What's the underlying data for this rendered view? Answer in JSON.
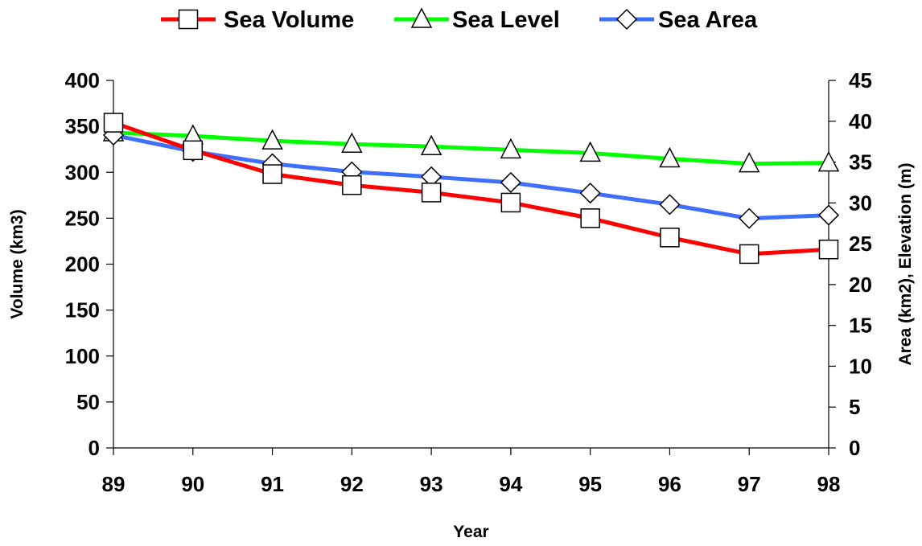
{
  "chart_data": {
    "type": "line",
    "title": "",
    "categories": [
      "89",
      "90",
      "91",
      "92",
      "93",
      "94",
      "95",
      "96",
      "97",
      "98"
    ],
    "xlabel": "Year",
    "ylabel_left": "Volume (km3)",
    "ylabel_right": "Area (km2), Elevation (m)",
    "ylim_left": [
      0,
      400
    ],
    "yticks_left": [
      0,
      50,
      100,
      150,
      200,
      250,
      300,
      350,
      400
    ],
    "ylim_right": [
      0,
      45
    ],
    "yticks_right": [
      0,
      5,
      10,
      15,
      20,
      25,
      30,
      35,
      40,
      45
    ],
    "grid": false,
    "legend_position": "top",
    "series": [
      {
        "name": "Sea Volume",
        "axis": "left",
        "color": "#ff0000",
        "marker": "square",
        "values": [
          354,
          324,
          298,
          286,
          278,
          267,
          250,
          229,
          211,
          216
        ]
      },
      {
        "name": "Sea Level",
        "axis": "right",
        "color": "#00ff00",
        "marker": "triangle",
        "values": [
          38.6,
          38.2,
          37.6,
          37.2,
          36.9,
          36.5,
          36.1,
          35.4,
          34.8,
          34.9
        ]
      },
      {
        "name": "Sea Area",
        "axis": "right",
        "color": "#3f6fff",
        "marker": "diamond",
        "values": [
          38.3,
          36.3,
          34.8,
          33.8,
          33.2,
          32.5,
          31.2,
          29.8,
          28.1,
          28.5
        ]
      }
    ]
  }
}
